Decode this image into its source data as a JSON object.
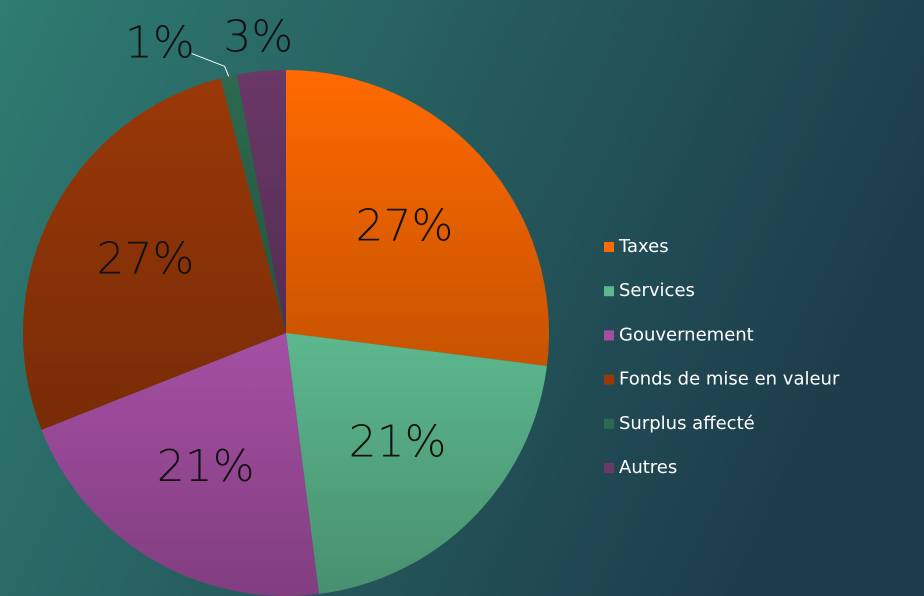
{
  "chart_data": {
    "type": "pie",
    "categories": [
      "Taxes",
      "Services",
      "Gouvernement",
      "Fonds de mise en valeur",
      "Surplus affecté",
      "Autres"
    ],
    "values": [
      27,
      21,
      21,
      27,
      1,
      3
    ],
    "value_labels": [
      "27%",
      "21%",
      "21%",
      "27%",
      "1%",
      "3%"
    ],
    "colors": [
      "#ff6a00",
      "#5cb88e",
      "#a54fa3",
      "#9a3808",
      "#2d6a4f",
      "#6b3868"
    ],
    "legend": "right"
  }
}
